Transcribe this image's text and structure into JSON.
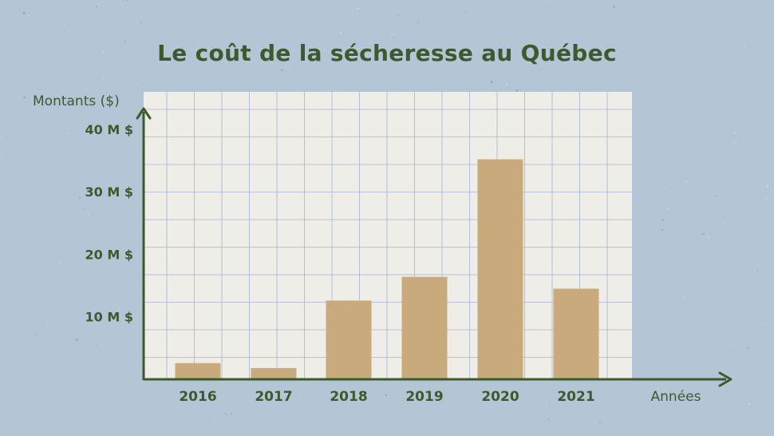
{
  "colors": {
    "background": "#b4c6d6",
    "paper": "#efede8",
    "grid": "#a8b2d6",
    "bar": "#c9aa7c",
    "axis": "#3d5a2c",
    "text": "#3d5a2c"
  },
  "chart_data": {
    "type": "bar",
    "title": "Le coût de la sécheresse au Québec",
    "xlabel": "Années",
    "ylabel": "Montants ($)",
    "categories": [
      "2016",
      "2017",
      "2018",
      "2019",
      "2020",
      "2021"
    ],
    "values": [
      2.6,
      1.8,
      12.6,
      16.4,
      35.2,
      14.5
    ],
    "unit": "M $",
    "ylim": [
      0,
      46
    ],
    "yticks": [
      10,
      20,
      30,
      40
    ],
    "ytick_labels": [
      "10 M $",
      "20 M $",
      "30 M $",
      "40 M $"
    ],
    "grid": true,
    "legend": "none"
  }
}
